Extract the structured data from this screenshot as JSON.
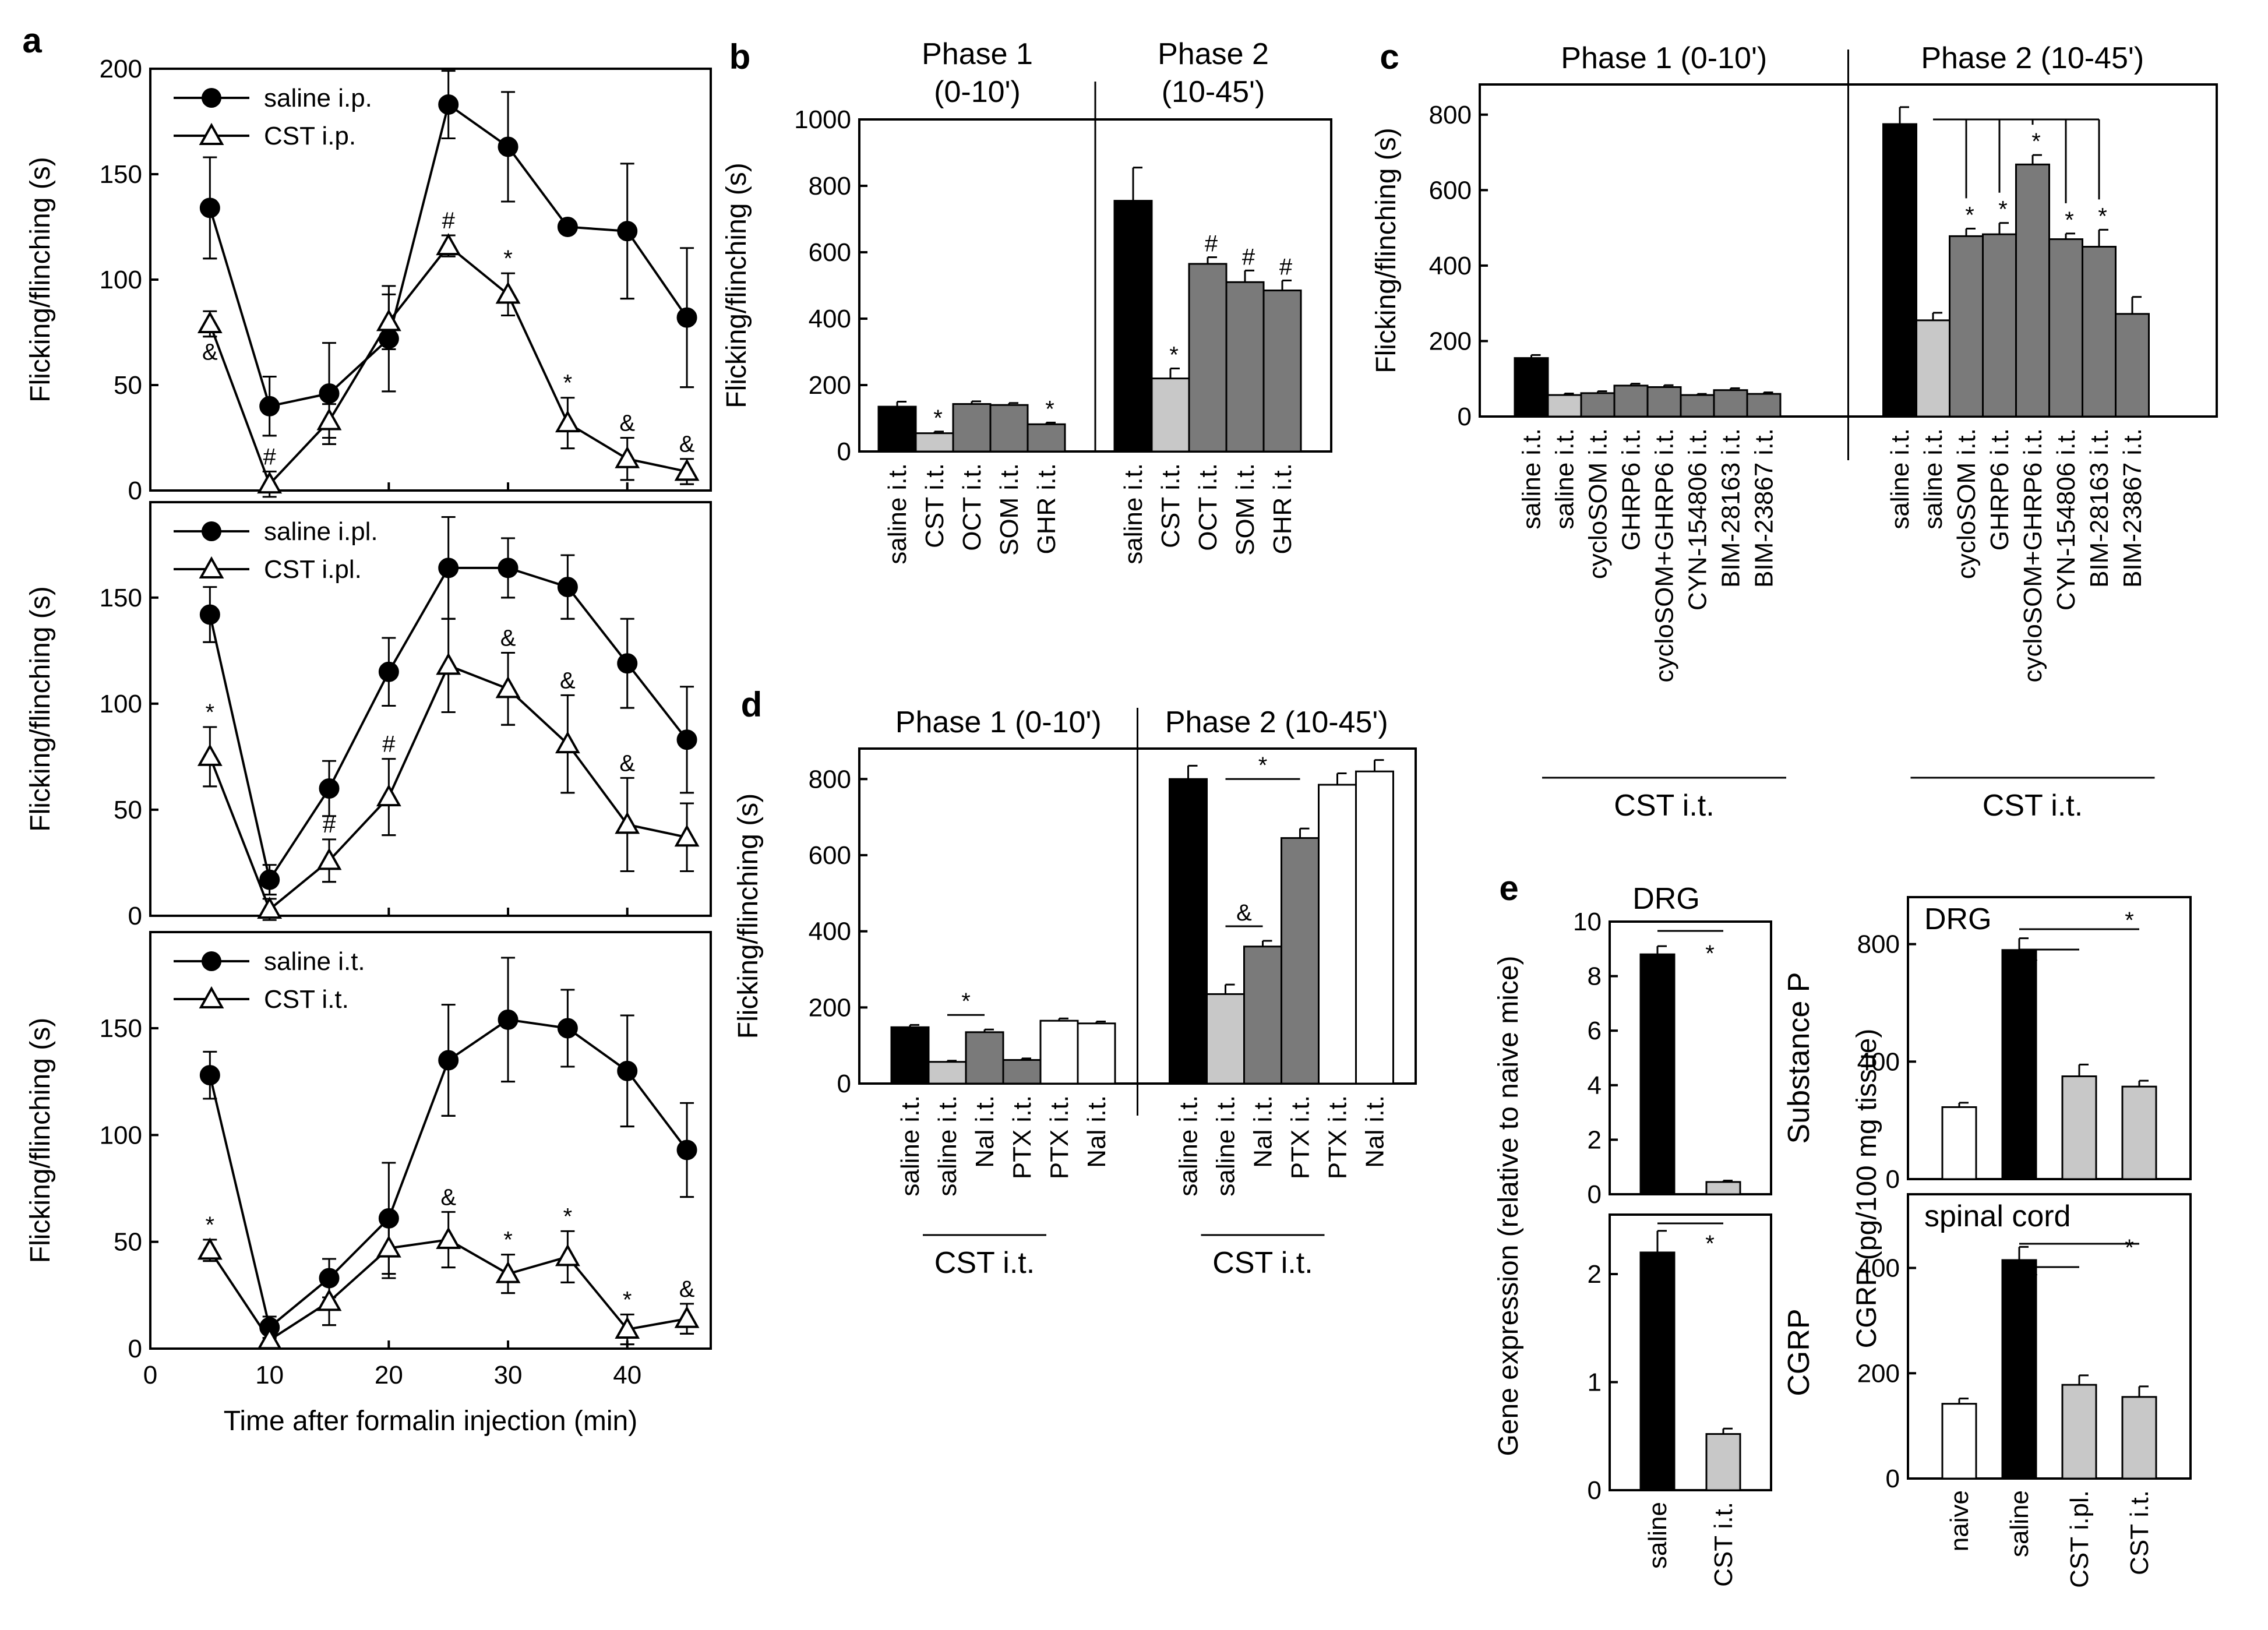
{
  "chart_data": [
    {
      "panel": "a",
      "type": "line",
      "subpanel": "top",
      "xlabel": "",
      "ylabel": "Flicking/flinching (s)",
      "xlim": [
        0,
        47
      ],
      "ylim": [
        0,
        200
      ],
      "yticks": [
        "0",
        "50",
        "100",
        "150",
        "200"
      ],
      "x": [
        5,
        10,
        15,
        20,
        25,
        30,
        35,
        40,
        45
      ],
      "series": [
        {
          "name": "saline i.p.",
          "marker": "filled-circle",
          "values": [
            134,
            40,
            46,
            72,
            183,
            163,
            125,
            123,
            82
          ],
          "errors": [
            24,
            14,
            24,
            25,
            16,
            26,
            3,
            32,
            33
          ]
        },
        {
          "name": "CST i.p.",
          "marker": "open-triangle",
          "values": [
            79,
            3,
            33,
            80,
            116,
            93,
            32,
            15,
            9
          ],
          "errors": [
            6,
            6,
            8,
            13,
            5,
            10,
            12,
            10,
            6
          ],
          "annotations": [
            "&",
            "#",
            "",
            "",
            "#",
            "*",
            "*",
            "&",
            "&"
          ]
        }
      ]
    },
    {
      "panel": "a",
      "type": "line",
      "subpanel": "middle",
      "xlabel": "",
      "ylabel": "Flicking/flinching (s)",
      "xlim": [
        0,
        47
      ],
      "ylim": [
        0,
        195
      ],
      "yticks": [
        "0",
        "50",
        "100",
        "150"
      ],
      "x": [
        5,
        10,
        15,
        20,
        25,
        30,
        35,
        40,
        45
      ],
      "series": [
        {
          "name": "saline i.pl.",
          "marker": "filled-circle",
          "values": [
            142,
            17,
            60,
            115,
            164,
            164,
            155,
            119,
            83
          ],
          "errors": [
            13,
            7,
            13,
            16,
            24,
            14,
            15,
            21,
            25
          ]
        },
        {
          "name": "CST i.pl.",
          "marker": "open-triangle",
          "values": [
            75,
            3,
            26,
            56,
            118,
            107,
            81,
            43,
            37
          ],
          "errors": [
            14,
            5,
            10,
            18,
            22,
            17,
            23,
            22,
            16
          ],
          "annotations": [
            "*",
            "",
            "#",
            "#",
            "",
            "&",
            "&",
            "&",
            ""
          ]
        }
      ]
    },
    {
      "panel": "a",
      "type": "line",
      "subpanel": "bottom",
      "xlabel": "Time after formalin injection (min)",
      "ylabel": "Flicking/flinching (s)",
      "xlim": [
        0,
        47
      ],
      "ylim": [
        0,
        195
      ],
      "yticks": [
        "0",
        "50",
        "100",
        "150"
      ],
      "xticks": [
        "0",
        "10",
        "20",
        "30",
        "40"
      ],
      "x": [
        5,
        10,
        15,
        20,
        25,
        30,
        35,
        40,
        45
      ],
      "series": [
        {
          "name": "saline i.t.",
          "marker": "filled-circle",
          "values": [
            128,
            10,
            33,
            61,
            135,
            154,
            150,
            130,
            93
          ],
          "errors": [
            11,
            5,
            9,
            26,
            26,
            29,
            18,
            26,
            22
          ]
        },
        {
          "name": "CST i.t.",
          "marker": "open-triangle",
          "values": [
            46,
            4,
            22,
            47,
            51,
            35,
            43,
            9,
            14
          ],
          "errors": [
            5,
            4,
            11,
            14,
            13,
            9,
            12,
            7,
            7
          ],
          "annotations": [
            "*",
            "",
            "",
            "",
            "&",
            "*",
            "*",
            "*",
            "&"
          ]
        }
      ]
    },
    {
      "panel": "b",
      "type": "bar",
      "ylabel": "Flicking/flinching (s)",
      "ylim": [
        0,
        1000
      ],
      "yticks": [
        "0",
        "200",
        "400",
        "600",
        "800",
        "1000"
      ],
      "groups": [
        {
          "title": "Phase 1",
          "subtitle": "(0-10')",
          "categories": [
            "saline i.t.",
            "CST i.t.",
            "OCT i.t.",
            "SOM i.t.",
            "GHR i.t."
          ],
          "values": [
            135,
            55,
            143,
            140,
            82
          ],
          "errors": [
            15,
            5,
            8,
            6,
            5
          ],
          "colors": [
            "black",
            "light",
            "gray",
            "gray",
            "gray"
          ],
          "annotations": [
            "",
            "*",
            "",
            "",
            "*"
          ]
        },
        {
          "title": "Phase 2",
          "subtitle": "(10-45')",
          "categories": [
            "saline i.t.",
            "CST i.t.",
            "OCT i.t.",
            "SOM i.t.",
            "GHR i.t."
          ],
          "values": [
            755,
            220,
            565,
            510,
            485
          ],
          "errors": [
            100,
            30,
            20,
            35,
            30
          ],
          "colors": [
            "black",
            "light",
            "gray",
            "gray",
            "gray"
          ],
          "annotations": [
            "",
            "*",
            "#",
            "#",
            "#"
          ]
        }
      ]
    },
    {
      "panel": "c",
      "type": "bar",
      "ylabel": "Flicking/flinching (s)",
      "ylim": [
        0,
        880
      ],
      "yticks": [
        "0",
        "200",
        "400",
        "600",
        "800"
      ],
      "groups": [
        {
          "title": "Phase 1 (0-10')",
          "categories": [
            "saline i.t.",
            "saline i.t.",
            "cycloSOM i.t.",
            "GHRP6 i.t.",
            "cycloSOM+GHRP6 i.t.",
            "CYN-154806 i.t.",
            "BIM-28163 i.t.",
            "BIM-23867 i.t."
          ],
          "values": [
            155,
            57,
            62,
            82,
            78,
            57,
            70,
            60
          ],
          "errors": [
            8,
            4,
            5,
            5,
            5,
            3,
            5,
            4
          ],
          "colors": [
            "black",
            "light",
            "gray",
            "gray",
            "gray",
            "gray",
            "gray",
            "gray"
          ],
          "bracket": "CST i.t."
        },
        {
          "title": "Phase 2 (10-45')",
          "categories": [
            "saline i.t.",
            "saline i.t.",
            "cycloSOM i.t.",
            "GHRP6 i.t.",
            "cycloSOM+GHRP6 i.t.",
            "CYN-154806 i.t.",
            "BIM-28163 i.t.",
            "BIM-23867 i.t."
          ],
          "values": [
            775,
            255,
            478,
            483,
            668,
            470,
            450,
            272
          ],
          "errors": [
            45,
            20,
            20,
            30,
            25,
            15,
            45,
            45
          ],
          "colors": [
            "black",
            "light",
            "gray",
            "gray",
            "gray",
            "gray",
            "gray",
            "gray"
          ],
          "annotations": [
            "",
            "",
            "*",
            "*",
            "*",
            "*",
            "*",
            ""
          ],
          "bracket": "CST i.t."
        }
      ]
    },
    {
      "panel": "d",
      "type": "bar",
      "ylabel": "Flicking/flinching (s)",
      "ylim": [
        0,
        880
      ],
      "yticks": [
        "0",
        "200",
        "400",
        "600",
        "800"
      ],
      "groups": [
        {
          "title": "Phase 1 (0-10')",
          "categories": [
            "saline i.t.",
            "saline i.t.",
            "Nal i.t.",
            "PTX i.t.",
            "PTX i.t.",
            "Nal i.t."
          ],
          "values": [
            148,
            57,
            135,
            62,
            165,
            158
          ],
          "errors": [
            6,
            3,
            7,
            4,
            6,
            5
          ],
          "colors": [
            "black",
            "light",
            "gray",
            "gray",
            "white",
            "white"
          ],
          "comparisons": [
            {
              "from": 1,
              "to": 2,
              "mark": "*"
            }
          ],
          "bracket": "CST i.t."
        },
        {
          "title": "Phase 2 (10-45')",
          "categories": [
            "saline i.t.",
            "saline i.t.",
            "Nal i.t.",
            "PTX i.t.",
            "PTX i.t.",
            "Nal i.t."
          ],
          "values": [
            800,
            235,
            360,
            645,
            785,
            820
          ],
          "errors": [
            35,
            25,
            15,
            25,
            30,
            30
          ],
          "colors": [
            "black",
            "light",
            "gray",
            "gray",
            "white",
            "white"
          ],
          "comparisons": [
            {
              "from": 1,
              "to": 2,
              "mark": "&"
            },
            {
              "from": 1,
              "to": 3,
              "mark": "*"
            }
          ],
          "bracket": "CST i.t."
        }
      ]
    },
    {
      "panel": "e",
      "type": "bar",
      "subpanel": "Substance P",
      "title": "DRG",
      "side_label": "Substance P",
      "ylabel": "Gene expression (relative to naive mice)",
      "ylim": [
        0,
        10
      ],
      "yticks": [
        "0",
        "2",
        "4",
        "6",
        "8",
        "10"
      ],
      "categories": [
        "saline",
        "CST i.t."
      ],
      "values": [
        8.8,
        0.45
      ],
      "errors": [
        0.3,
        0.05
      ],
      "colors": [
        "black",
        "light"
      ],
      "comparisons": [
        {
          "from": 0,
          "to": 1,
          "mark": "*"
        }
      ]
    },
    {
      "panel": "e",
      "type": "bar",
      "subpanel": "CGRP gene",
      "side_label": "CGRP",
      "ylim": [
        0,
        2.55
      ],
      "yticks": [
        "0",
        "1",
        "2"
      ],
      "categories": [
        "saline",
        "CST i.t."
      ],
      "values": [
        2.2,
        0.52
      ],
      "errors": [
        0.2,
        0.05
      ],
      "colors": [
        "black",
        "light"
      ],
      "comparisons": [
        {
          "from": 0,
          "to": 1,
          "mark": "*"
        }
      ]
    },
    {
      "panel": "e",
      "type": "bar",
      "subpanel": "DRG CGRP",
      "title": "DRG",
      "ylabel": "CGRP (pg/100 mg tissue)",
      "ylim": [
        0,
        960
      ],
      "yticks": [
        "0",
        "400",
        "800"
      ],
      "categories": [
        "naive",
        "saline",
        "CST i.pl.",
        "CST i.t."
      ],
      "values": [
        245,
        780,
        350,
        315
      ],
      "errors": [
        15,
        40,
        40,
        20
      ],
      "colors": [
        "white",
        "black",
        "light",
        "light"
      ],
      "comparisons": [
        {
          "from": 1,
          "to": 2,
          "mark": "*"
        },
        {
          "from": 1,
          "to": 3,
          "mark": "*"
        }
      ]
    },
    {
      "panel": "e",
      "type": "bar",
      "subpanel": "spinal cord CGRP",
      "title": "spinal cord",
      "ylim": [
        0,
        540
      ],
      "yticks": [
        "0",
        "200",
        "400"
      ],
      "categories": [
        "naive",
        "saline",
        "CST i.pl.",
        "CST i.t."
      ],
      "values": [
        142,
        415,
        178,
        155
      ],
      "errors": [
        10,
        25,
        18,
        20
      ],
      "colors": [
        "white",
        "black",
        "light",
        "light"
      ],
      "comparisons": [
        {
          "from": 1,
          "to": 2,
          "mark": "*"
        },
        {
          "from": 1,
          "to": 3,
          "mark": "*"
        }
      ]
    }
  ]
}
